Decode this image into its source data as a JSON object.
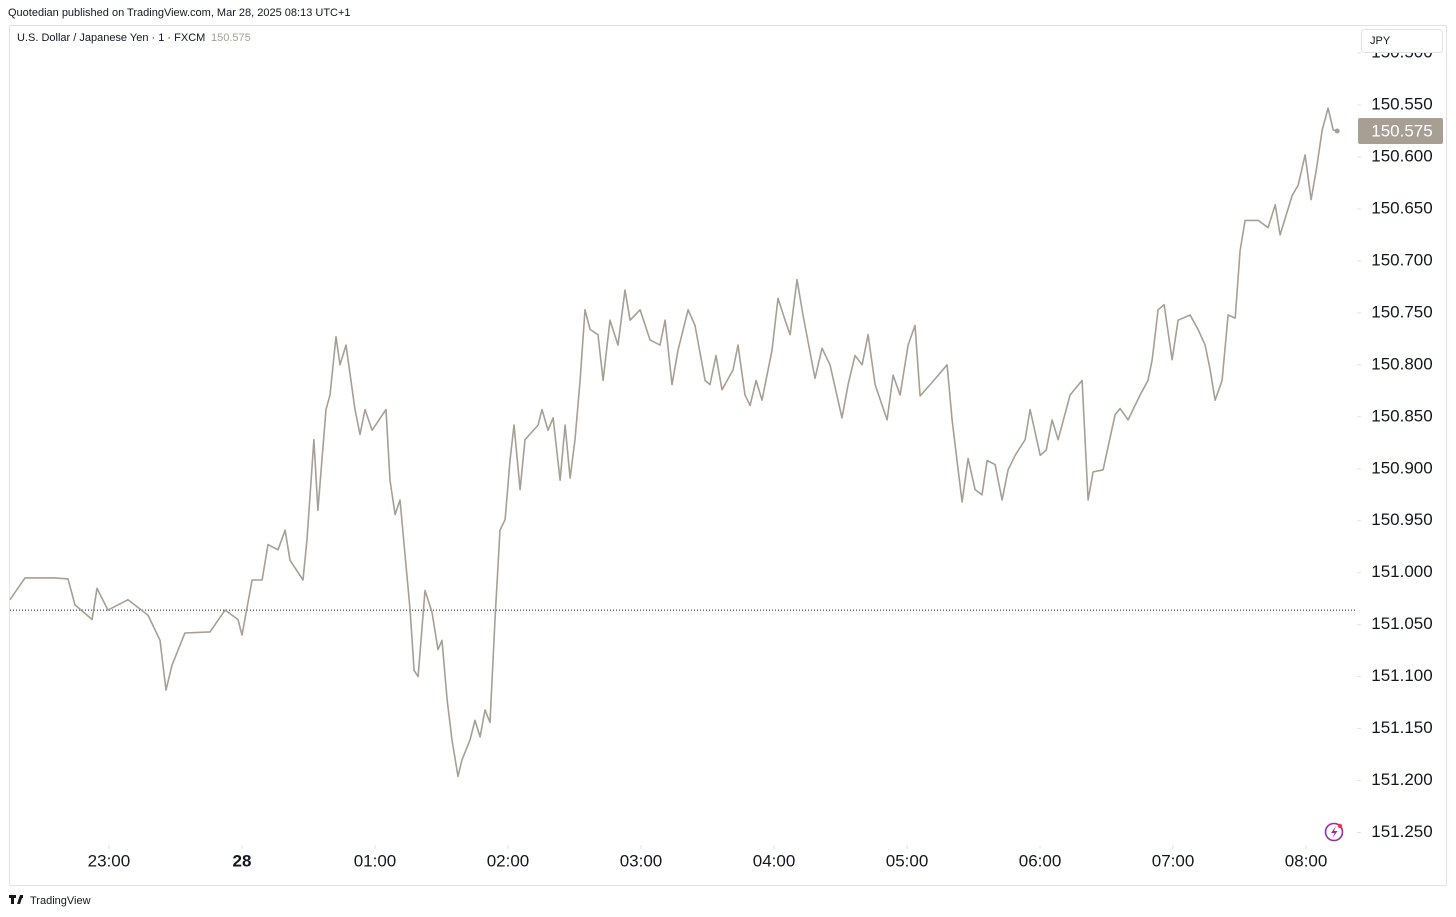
{
  "chart_data": {
    "type": "line",
    "publisher": "Quotedian published on TradingView.com, Mar 28, 2025 08:13 UTC+1",
    "title": "U.S. Dollar / Japanese Yen · 1 · FXCM",
    "last_price": {
      "value": 150.575,
      "label": "150.575"
    },
    "currency": "JPY",
    "brand": "TradingView",
    "color": "#a89f94",
    "inverted": true,
    "reference_line": 151.036,
    "xlim": [
      22.256,
      32.383
    ],
    "ylim": [
      150.473,
      151.262
    ],
    "xticks": [
      {
        "value": 23,
        "label": "23:00"
      },
      {
        "value": 24,
        "label": "28"
      },
      {
        "value": 25,
        "label": "01:00"
      },
      {
        "value": 26,
        "label": "02:00"
      },
      {
        "value": 27,
        "label": "03:00"
      },
      {
        "value": 28,
        "label": "04:00"
      },
      {
        "value": 29,
        "label": "05:00"
      },
      {
        "value": 30,
        "label": "06:00"
      },
      {
        "value": 31,
        "label": "07:00"
      },
      {
        "value": 32,
        "label": "08:00"
      }
    ],
    "yticks": [
      {
        "value": 150.5,
        "label": "150.500"
      },
      {
        "value": 150.55,
        "label": "150.550"
      },
      {
        "value": 150.6,
        "label": "150.600"
      },
      {
        "value": 150.65,
        "label": "150.650"
      },
      {
        "value": 150.7,
        "label": "150.700"
      },
      {
        "value": 150.75,
        "label": "150.750"
      },
      {
        "value": 150.8,
        "label": "150.800"
      },
      {
        "value": 150.85,
        "label": "150.850"
      },
      {
        "value": 150.9,
        "label": "150.900"
      },
      {
        "value": 150.95,
        "label": "150.950"
      },
      {
        "value": 151,
        "label": "151.000"
      },
      {
        "value": 151.05,
        "label": "151.050"
      },
      {
        "value": 151.1,
        "label": "151.100"
      },
      {
        "value": 151.15,
        "label": "151.150"
      },
      {
        "value": 151.2,
        "label": "151.200"
      },
      {
        "value": 151.25,
        "label": "151.250"
      }
    ],
    "x": [
      22.256,
      22.369,
      22.594,
      22.692,
      22.745,
      22.873,
      22.91,
      22.993,
      23.143,
      23.294,
      23.384,
      23.429,
      23.474,
      23.571,
      23.76,
      23.873,
      23.97,
      24.0,
      24.076,
      24.151,
      24.196,
      24.271,
      24.324,
      24.361,
      24.459,
      24.489,
      24.541,
      24.571,
      24.632,
      24.662,
      24.707,
      24.737,
      24.782,
      24.85,
      24.887,
      24.925,
      24.978,
      25.083,
      25.113,
      25.151,
      25.188,
      25.264,
      25.294,
      25.324,
      25.376,
      25.429,
      25.474,
      25.504,
      25.542,
      25.579,
      25.624,
      25.654,
      25.714,
      25.752,
      25.79,
      25.827,
      25.865,
      25.902,
      25.94,
      25.978,
      26.015,
      26.045,
      26.091,
      26.128,
      26.226,
      26.256,
      26.301,
      26.339,
      26.392,
      26.429,
      26.467,
      26.504,
      26.542,
      26.579,
      26.617,
      26.677,
      26.715,
      26.767,
      26.827,
      26.88,
      26.918,
      26.993,
      27.068,
      27.143,
      27.181,
      27.233,
      27.278,
      27.354,
      27.406,
      27.482,
      27.519,
      27.564,
      27.609,
      27.692,
      27.729,
      27.782,
      27.82,
      27.865,
      27.91,
      27.985,
      28.03,
      28.083,
      28.121,
      28.173,
      28.218,
      28.308,
      28.361,
      28.421,
      28.511,
      28.557,
      28.609,
      28.662,
      28.707,
      28.76,
      28.85,
      28.895,
      28.948,
      29.008,
      29.06,
      29.098,
      29.188,
      29.301,
      29.339,
      29.376,
      29.414,
      29.459,
      29.512,
      29.564,
      29.602,
      29.662,
      29.715,
      29.76,
      29.813,
      29.888,
      29.925,
      30.001,
      30.046,
      30.091,
      30.136,
      30.226,
      30.316,
      30.361,
      30.399,
      30.474,
      30.564,
      30.602,
      30.662,
      30.752,
      30.812,
      30.843,
      30.888,
      30.933,
      30.993,
      31.038,
      31.128,
      31.188,
      31.241,
      31.279,
      31.316,
      31.369,
      31.414,
      31.467,
      31.504,
      31.542,
      31.64,
      31.715,
      31.768,
      31.805,
      31.896,
      31.941,
      31.993,
      32.038,
      32.076,
      32.121,
      32.166,
      32.204,
      32.234
    ],
    "values": [
      151.026,
      151.005,
      151.005,
      151.006,
      151.031,
      151.045,
      151.015,
      151.036,
      151.026,
      151.041,
      151.065,
      151.113,
      151.089,
      151.058,
      151.057,
      151.036,
      151.045,
      151.06,
      151.007,
      151.007,
      150.973,
      150.978,
      150.959,
      150.988,
      151.007,
      150.968,
      150.872,
      150.94,
      150.843,
      150.829,
      150.773,
      150.8,
      150.781,
      150.843,
      150.867,
      150.843,
      150.863,
      150.843,
      150.911,
      150.944,
      150.93,
      151.036,
      151.094,
      151.1,
      151.017,
      151.038,
      151.074,
      151.065,
      151.122,
      151.161,
      151.196,
      151.18,
      151.161,
      151.142,
      151.158,
      151.132,
      151.144,
      151.045,
      150.959,
      150.949,
      150.892,
      150.858,
      150.92,
      150.872,
      150.858,
      150.843,
      150.863,
      150.851,
      150.911,
      150.858,
      150.909,
      150.872,
      150.815,
      150.747,
      150.766,
      150.771,
      150.815,
      150.757,
      150.781,
      150.728,
      150.757,
      150.747,
      150.776,
      150.781,
      150.757,
      150.819,
      150.786,
      150.747,
      150.762,
      150.815,
      150.819,
      150.791,
      150.824,
      150.805,
      150.781,
      150.829,
      150.839,
      150.815,
      150.834,
      150.786,
      150.736,
      150.757,
      150.771,
      150.718,
      150.752,
      150.813,
      150.784,
      150.8,
      150.851,
      150.819,
      150.791,
      150.8,
      150.771,
      150.819,
      150.853,
      150.81,
      150.829,
      150.781,
      150.762,
      150.83,
      150.817,
      150.8,
      150.853,
      150.892,
      150.932,
      150.89,
      150.92,
      150.925,
      150.892,
      150.896,
      150.93,
      150.901,
      150.887,
      150.872,
      150.843,
      150.887,
      150.882,
      150.853,
      150.872,
      150.829,
      150.815,
      150.93,
      150.903,
      150.901,
      150.848,
      150.842,
      150.853,
      150.829,
      150.815,
      150.795,
      150.747,
      150.742,
      150.795,
      150.757,
      150.752,
      150.766,
      150.781,
      150.805,
      150.834,
      150.815,
      150.752,
      150.755,
      150.69,
      150.661,
      150.661,
      150.668,
      150.646,
      150.675,
      150.637,
      150.627,
      150.598,
      150.641,
      150.613,
      150.574,
      150.553,
      150.574,
      150.575
    ]
  }
}
